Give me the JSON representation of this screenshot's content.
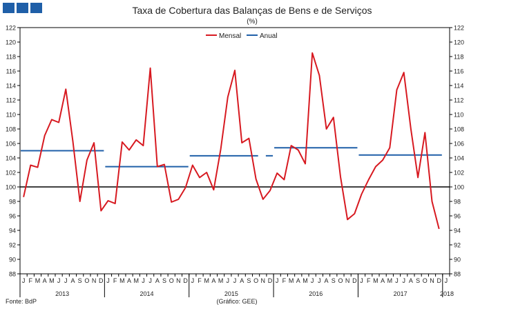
{
  "header": {
    "title": "Taxa de Cobertura das Balanças de Bens e de Serviços",
    "subtitle": "(%)"
  },
  "footer": {
    "source": "Fonte:  BdP",
    "credit": "(Gráfico:  GEE)"
  },
  "colors": {
    "mensal": "#d71920",
    "anual": "#1f5fa8",
    "reference": "#000000",
    "logo": "#1f5fa8"
  },
  "chart_data": {
    "type": "line",
    "title": "Taxa de Cobertura das Balanças de Bens e de Serviços",
    "subtitle": "(%)",
    "ylim": [
      88,
      122
    ],
    "yticks": [
      88,
      90,
      92,
      94,
      96,
      98,
      100,
      102,
      104,
      106,
      108,
      110,
      112,
      114,
      116,
      118,
      120,
      122
    ],
    "reference_line": 100,
    "legend": {
      "placement": "top-center",
      "entries": [
        "Mensal",
        "Anual"
      ]
    },
    "grid": false,
    "month_labels": [
      "J",
      "F",
      "M",
      "A",
      "M",
      "J",
      "J",
      "A",
      "S",
      "O",
      "N",
      "D",
      "J",
      "F",
      "M",
      "A",
      "M",
      "J",
      "J",
      "A",
      "S",
      "O",
      "N",
      "D",
      "J",
      "F",
      "M",
      "A",
      "M",
      "J",
      "J",
      "A",
      "S",
      "O",
      "N",
      "D",
      "J",
      "F",
      "M",
      "A",
      "M",
      "J",
      "J",
      "A",
      "S",
      "O",
      "N",
      "D",
      "J",
      "F",
      "M",
      "A",
      "M",
      "J",
      "J",
      "A",
      "S",
      "O",
      "N",
      "D",
      "J"
    ],
    "year_labels": [
      "2013",
      "2014",
      "2015",
      "2016",
      "2017",
      "2018"
    ],
    "series": [
      {
        "name": "Mensal",
        "values": [
          98.6,
          103.0,
          102.7,
          107.1,
          109.3,
          108.9,
          113.5,
          106.3,
          98.0,
          103.7,
          106.1,
          96.7,
          98.1,
          97.7,
          106.2,
          105.1,
          106.5,
          105.7,
          116.4,
          102.8,
          103.1,
          97.9,
          98.3,
          99.9,
          103.0,
          101.3,
          102.0,
          99.6,
          105.2,
          112.4,
          116.1,
          106.1,
          106.7,
          101.1,
          98.3,
          99.5,
          101.9,
          101.0,
          105.7,
          105.1,
          103.2,
          118.5,
          115.4,
          108.0,
          109.6,
          101.4,
          95.5,
          96.3,
          99.0,
          101.0,
          102.8,
          103.7,
          105.4,
          113.4,
          115.8,
          108.0,
          101.3,
          107.5,
          98.0,
          94.2
        ]
      },
      {
        "name": "Anual",
        "segments": [
          {
            "year": "2013",
            "value": 105.0
          },
          {
            "year": "2014",
            "value": 102.8
          },
          {
            "year": "2015",
            "value": 104.3
          },
          {
            "year": "2016",
            "value": 105.4
          },
          {
            "year": "2017",
            "value": 104.4
          }
        ]
      }
    ]
  }
}
